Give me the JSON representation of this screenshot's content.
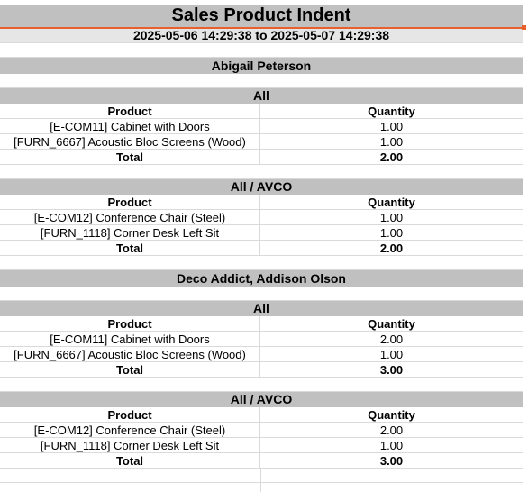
{
  "report": {
    "title": "Sales Product Indent",
    "date_range": "2025-05-06 14:29:38 to 2025-05-07 14:29:38"
  },
  "colors": {
    "header_fill": "#c0c0c0",
    "gridline": "#dadada",
    "selection": "#e8602c"
  },
  "customers": [
    {
      "name": "Abigail Peterson",
      "sections": [
        {
          "title": "All",
          "headers": [
            "Product",
            "Quantity"
          ],
          "rows": [
            [
              "[E-COM11] Cabinet with Doors",
              "1.00"
            ],
            [
              "[FURN_6667] Acoustic Bloc Screens (Wood)",
              "1.00"
            ]
          ],
          "total": [
            "Total",
            "2.00"
          ]
        },
        {
          "title": "All / AVCO",
          "headers": [
            "Product",
            "Quantity"
          ],
          "rows": [
            [
              "[E-COM12] Conference Chair (Steel)",
              "1.00"
            ],
            [
              "[FURN_1118] Corner Desk Left Sit",
              "1.00"
            ]
          ],
          "total": [
            "Total",
            "2.00"
          ]
        }
      ]
    },
    {
      "name": "Deco Addict, Addison Olson",
      "sections": [
        {
          "title": "All",
          "headers": [
            "Product",
            "Quantity"
          ],
          "rows": [
            [
              "[E-COM11] Cabinet with Doors",
              "2.00"
            ],
            [
              "[FURN_6667] Acoustic Bloc Screens (Wood)",
              "1.00"
            ]
          ],
          "total": [
            "Total",
            "3.00"
          ]
        },
        {
          "title": "All / AVCO",
          "headers": [
            "Product",
            "Quantity"
          ],
          "rows": [
            [
              "[E-COM12] Conference Chair (Steel)",
              "2.00"
            ],
            [
              "[FURN_1118] Corner Desk Left Sit",
              "1.00"
            ]
          ],
          "total": [
            "Total",
            "3.00"
          ]
        }
      ]
    }
  ]
}
